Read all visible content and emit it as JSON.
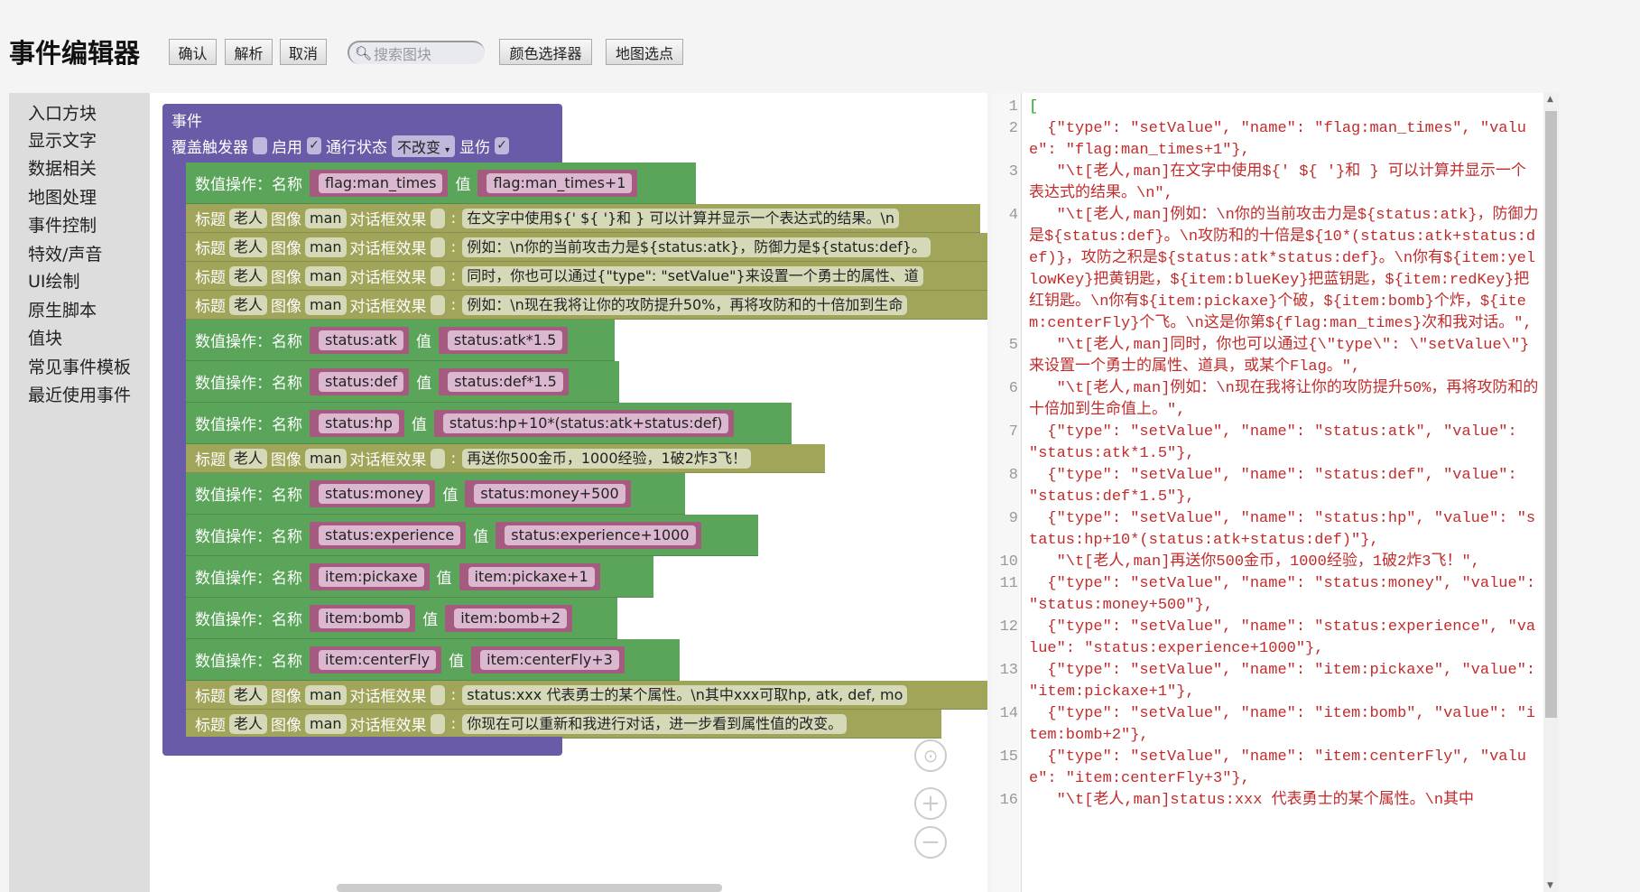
{
  "header": {
    "title": "事件编辑器",
    "buttons": [
      "确认",
      "解析",
      "取消"
    ],
    "search_placeholder": "搜索图块",
    "color_picker": "颜色选择器",
    "map_pick": "地图选点",
    "search_icon": "magnifier-icon"
  },
  "sidebar": {
    "items": [
      "入口方块",
      "显示文字",
      "数据相关",
      "地图处理",
      "事件控制",
      "特效/声音",
      "UI绘制",
      "原生脚本",
      "值块",
      "常见事件模板",
      "最近使用事件"
    ]
  },
  "event_block": {
    "title": "事件",
    "override_label": "覆盖触发器",
    "override_checked": false,
    "enable_label": "启用",
    "enable_checked": true,
    "pass_label": "通行状态",
    "pass_value": "不改变",
    "show_damage_label": "显伤",
    "show_damage_checked": true,
    "check_mark": "✓"
  },
  "block_labels": {
    "setvalue_name": "数值操作：名称",
    "setvalue_value": "值",
    "text_title": "标题",
    "text_image": "图像",
    "text_effect": "对话框效果",
    "colon": ":"
  },
  "blocks": [
    {
      "type": "setValue",
      "name": "flag:man_times",
      "value": "flag:man_times+1"
    },
    {
      "type": "text",
      "title": "老人",
      "image": "man",
      "text": "在文字中使用${' ${ '}和 } 可以计算并显示一个表达式的结果。\\n"
    },
    {
      "type": "text",
      "title": "老人",
      "image": "man",
      "text": "例如：\\n你的当前攻击力是${status:atk}，防御力是${status:def}。"
    },
    {
      "type": "text",
      "title": "老人",
      "image": "man",
      "text": "同时，你也可以通过{\"type\": \"setValue\"}来设置一个勇士的属性、道"
    },
    {
      "type": "text",
      "title": "老人",
      "image": "man",
      "text": "例如：\\n现在我将让你的攻防提升50%，再将攻防和的十倍加到生命"
    },
    {
      "type": "setValue",
      "name": "status:atk",
      "value": "status:atk*1.5"
    },
    {
      "type": "setValue",
      "name": "status:def",
      "value": "status:def*1.5"
    },
    {
      "type": "setValue",
      "name": "status:hp",
      "value": "status:hp+10*(status:atk+status:def)"
    },
    {
      "type": "text",
      "title": "老人",
      "image": "man",
      "text": "再送你500金币，1000经验，1破2炸3飞！"
    },
    {
      "type": "setValue",
      "name": "status:money",
      "value": "status:money+500"
    },
    {
      "type": "setValue",
      "name": "status:experience",
      "value": "status:experience+1000"
    },
    {
      "type": "setValue",
      "name": "item:pickaxe",
      "value": "item:pickaxe+1"
    },
    {
      "type": "setValue",
      "name": "item:bomb",
      "value": "item:bomb+2"
    },
    {
      "type": "setValue",
      "name": "item:centerFly",
      "value": "item:centerFly+3"
    },
    {
      "type": "text",
      "title": "老人",
      "image": "man",
      "text": "status:xxx 代表勇士的某个属性。\\n其中xxx可取hp, atk, def, mo"
    },
    {
      "type": "text",
      "title": "老人",
      "image": "man",
      "text": "你现在可以重新和我进行对话，进一步看到属性值的改变。"
    }
  ],
  "zoom_controls": {
    "center": "⊙",
    "zoom_in": "+",
    "zoom_out": "−"
  },
  "code": {
    "lines": [
      {
        "n": "1",
        "text": "["
      },
      {
        "n": "2",
        "text": "  {\"type\": \"setValue\", \"name\": \"flag:man_times\", \"value\": \"flag:man_times+1\"},"
      },
      {
        "n": "3",
        "text": "   \"\\t[老人,man]在文字中使用${' ${ '}和 } 可以计算并显示一个表达式的结果。\\n\","
      },
      {
        "n": "4",
        "text": "   \"\\t[老人,man]例如：\\n你的当前攻击力是${status:atk}，防御力是${status:def}。\\n攻防和的十倍是${10*(status:atk+status:def)}，攻防之积是${status:atk*status:def}。\\n你有${item:yellowKey}把黄钥匙，${item:blueKey}把蓝钥匙，${item:redKey}把红钥匙。\\n你有${item:pickaxe}个破，${item:bomb}个炸，${item:centerFly}个飞。\\n这是你第${flag:man_times}次和我对话。\","
      },
      {
        "n": "5",
        "text": "   \"\\t[老人,man]同时，你也可以通过{\\\"type\\\": \\\"setValue\\\"}来设置一个勇士的属性、道具，或某个Flag。\","
      },
      {
        "n": "6",
        "text": "   \"\\t[老人,man]例如：\\n现在我将让你的攻防提升50%，再将攻防和的十倍加到生命值上。\","
      },
      {
        "n": "7",
        "text": "  {\"type\": \"setValue\", \"name\": \"status:atk\", \"value\": \"status:atk*1.5\"},"
      },
      {
        "n": "8",
        "text": "  {\"type\": \"setValue\", \"name\": \"status:def\", \"value\": \"status:def*1.5\"},"
      },
      {
        "n": "9",
        "text": "  {\"type\": \"setValue\", \"name\": \"status:hp\", \"value\": \"status:hp+10*(status:atk+status:def)\"},"
      },
      {
        "n": "10",
        "text": "   \"\\t[老人,man]再送你500金币，1000经验，1破2炸3飞！\","
      },
      {
        "n": "11",
        "text": "  {\"type\": \"setValue\", \"name\": \"status:money\", \"value\": \"status:money+500\"},"
      },
      {
        "n": "12",
        "text": "  {\"type\": \"setValue\", \"name\": \"status:experience\", \"value\": \"status:experience+1000\"},"
      },
      {
        "n": "13",
        "text": "  {\"type\": \"setValue\", \"name\": \"item:pickaxe\", \"value\": \"item:pickaxe+1\"},"
      },
      {
        "n": "14",
        "text": "  {\"type\": \"setValue\", \"name\": \"item:bomb\", \"value\": \"item:bomb+2\"},"
      },
      {
        "n": "15",
        "text": "  {\"type\": \"setValue\", \"name\": \"item:centerFly\", \"value\": \"item:centerFly+3\"},"
      },
      {
        "n": "16",
        "text": "   \"\\t[老人,man]status:xxx 代表勇士的某个属性。\\n其中"
      }
    ]
  },
  "colors": {
    "event": "#6a5ba8",
    "setvalue": "#5ba55b",
    "text": "#a0a55a",
    "value_input": "#a55b80",
    "code_text": "#c02c2c"
  }
}
